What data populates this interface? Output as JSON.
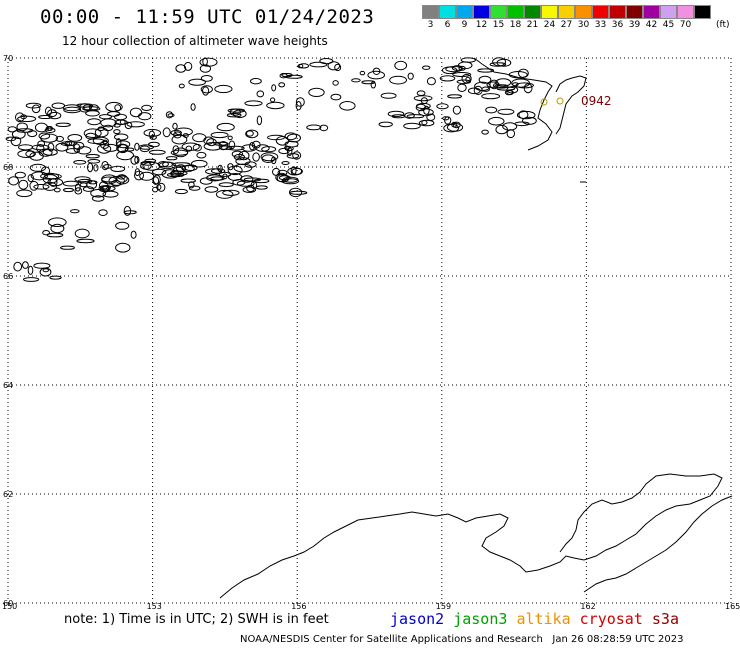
{
  "header": {
    "title": "00:00 - 11:59 UTC 01/24/2023",
    "subtitle": "12 hour collection of altimeter wave heights"
  },
  "legend": {
    "units": "(ft)",
    "items": [
      {
        "label": "3",
        "color": "#808080"
      },
      {
        "label": "6",
        "color": "#00e0e0"
      },
      {
        "label": "9",
        "color": "#00a8f0"
      },
      {
        "label": "12",
        "color": "#0000e0"
      },
      {
        "label": "15",
        "color": "#30e030"
      },
      {
        "label": "18",
        "color": "#00c000"
      },
      {
        "label": "21",
        "color": "#008800"
      },
      {
        "label": "24",
        "color": "#f8f800"
      },
      {
        "label": "27",
        "color": "#f8d000"
      },
      {
        "label": "30",
        "color": "#f89000"
      },
      {
        "label": "33",
        "color": "#f00000"
      },
      {
        "label": "36",
        "color": "#c00000"
      },
      {
        "label": "39",
        "color": "#800000"
      },
      {
        "label": "42",
        "color": "#a000a0"
      },
      {
        "label": "45",
        "color": "#d0a0f0"
      },
      {
        "label": "70",
        "color": "#f090e0"
      },
      {
        "label": "",
        "color": "#000000"
      }
    ]
  },
  "map": {
    "lat_labels": [
      "70",
      "68",
      "66",
      "64",
      "62",
      "60"
    ],
    "lon_labels": [
      "150",
      "153",
      "156",
      "159",
      "162",
      "165"
    ],
    "track_label": "0942",
    "track_color": "#7a0000"
  },
  "footer": {
    "note": "note: 1) Time is in UTC; 2) SWH is in feet",
    "satellites": [
      {
        "name": "jason2",
        "color": "#0000d0"
      },
      {
        "name": "jason3",
        "color": "#00a000"
      },
      {
        "name": "altika",
        "color": "#f09000"
      },
      {
        "name": "cryosat",
        "color": "#d00000"
      },
      {
        "name": "s3a",
        "color": "#900000"
      }
    ],
    "credit": "NOAA/NESDIS Center for Satellite Applications and Research   Jan 26 08:28:59 UTC 2023"
  }
}
